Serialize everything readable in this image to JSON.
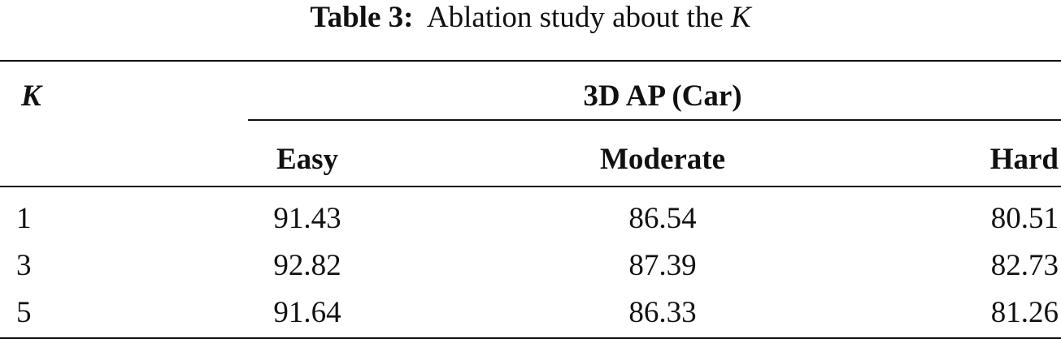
{
  "caption": {
    "label": "Table 3:",
    "text": "Ablation study about the",
    "symbol": "K"
  },
  "table": {
    "header": {
      "row_label": "K",
      "group": "3D AP (Car)",
      "columns": [
        "Easy",
        "Moderate",
        "Hard"
      ]
    },
    "rows": [
      [
        1,
        91.43,
        86.54,
        80.51
      ],
      [
        3,
        92.82,
        87.39,
        82.73
      ],
      [
        5,
        91.64,
        86.33,
        81.26
      ]
    ]
  }
}
